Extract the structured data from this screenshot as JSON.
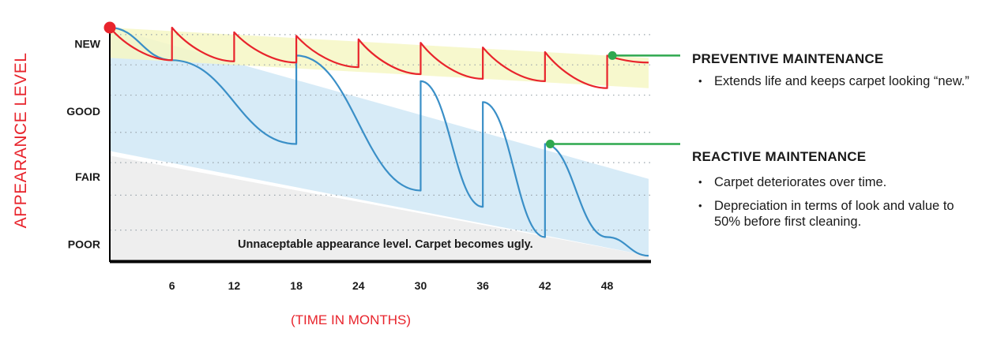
{
  "chart_data": {
    "type": "line",
    "ylabel": "APPEARANCE LEVEL",
    "xlabel": "(TIME IN MONTHS)",
    "x_ticks": [
      6,
      12,
      18,
      24,
      30,
      36,
      42,
      48
    ],
    "xlim": [
      0,
      52
    ],
    "y_levels": [
      "NEW",
      "GOOD",
      "FAIR",
      "POOR"
    ],
    "ylim": [
      0,
      100
    ],
    "grid": "dotted horizontal",
    "zone_note": "Unnaceptable appearance level. Carpet becomes ugly.",
    "colors": {
      "preventive": "#e8242c",
      "reactive": "#3a8fc7",
      "preventive_band": "#f6f7c4",
      "reactive_band": "#d5eaf7",
      "poor_zone": "#eeeeee",
      "callout": "#2fa84f",
      "start_marker": "#e8242c"
    },
    "series": [
      {
        "name": "PREVENTIVE MAINTENANCE",
        "color": "#e8242c",
        "points": [
          [
            0,
            100
          ],
          [
            6,
            86
          ],
          [
            6,
            100
          ],
          [
            12,
            85.5
          ],
          [
            12,
            98
          ],
          [
            18,
            85
          ],
          [
            18,
            96.5
          ],
          [
            24,
            83
          ],
          [
            24,
            95
          ],
          [
            30,
            80
          ],
          [
            30,
            93.5
          ],
          [
            36,
            78
          ],
          [
            36,
            91.5
          ],
          [
            42,
            77
          ],
          [
            42,
            89.5
          ],
          [
            48,
            74
          ],
          [
            48,
            88
          ],
          [
            52,
            85
          ]
        ]
      },
      {
        "name": "REACTIVE MAINTENANCE",
        "color": "#3a8fc7",
        "points": [
          [
            0,
            100
          ],
          [
            6,
            86
          ],
          [
            18,
            50
          ],
          [
            18,
            88
          ],
          [
            30,
            30
          ],
          [
            30,
            77
          ],
          [
            36,
            23
          ],
          [
            36,
            68
          ],
          [
            42,
            10
          ],
          [
            42,
            50
          ],
          [
            48,
            10
          ],
          [
            52,
            2
          ]
        ]
      }
    ],
    "bands": [
      {
        "name": "preventive",
        "top": [
          [
            0,
            100
          ],
          [
            52,
            87
          ]
        ],
        "bottom": [
          [
            0,
            87
          ],
          [
            52,
            74
          ]
        ]
      },
      {
        "name": "reactive",
        "top": [
          [
            0,
            100
          ],
          [
            52,
            35
          ]
        ],
        "bottom": [
          [
            0,
            47
          ],
          [
            52,
            2
          ]
        ]
      },
      {
        "name": "poor",
        "top": [
          [
            0,
            45
          ],
          [
            52,
            2
          ]
        ],
        "bottom": [
          [
            0,
            0
          ],
          [
            52,
            0
          ]
        ]
      }
    ],
    "callouts": [
      {
        "series": "PREVENTIVE MAINTENANCE",
        "x": 48.5,
        "y": 88
      },
      {
        "series": "REACTIVE MAINTENANCE",
        "x": 42.5,
        "y": 50
      }
    ]
  },
  "legend": {
    "preventive": {
      "title": "PREVENTIVE MAINTENANCE",
      "bullets": [
        "Extends life and keeps carpet looking “new.”"
      ]
    },
    "reactive": {
      "title": "REACTIVE MAINTENANCE",
      "bullets": [
        "Carpet deteriorates over time.",
        "Depreciation in terms of look and value to 50% before first cleaning."
      ]
    }
  }
}
